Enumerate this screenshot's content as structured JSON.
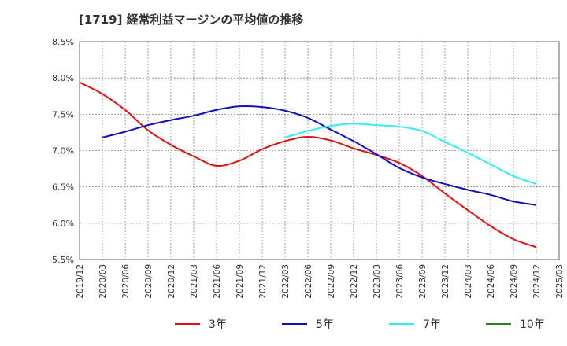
{
  "chart_data": {
    "type": "line",
    "title": "[1719]  経常利益マージンの平均値の推移",
    "xlabel": "",
    "ylabel": "",
    "ylim": [
      5.5,
      8.5
    ],
    "yticks": [
      5.5,
      6.0,
      6.5,
      7.0,
      7.5,
      8.0,
      8.5
    ],
    "ytick_labels": [
      "5.5%",
      "6.0%",
      "6.5%",
      "7.0%",
      "7.5%",
      "8.0%",
      "8.5%"
    ],
    "x_range": [
      "2019/12",
      "2025/03"
    ],
    "xtick_labels": [
      "2019/12",
      "2020/03",
      "2020/06",
      "2020/09",
      "2020/12",
      "2021/03",
      "2021/06",
      "2021/09",
      "2021/12",
      "2022/03",
      "2022/06",
      "2022/09",
      "2022/12",
      "2023/03",
      "2023/06",
      "2023/09",
      "2023/12",
      "2024/03",
      "2024/06",
      "2024/09",
      "2024/12",
      "2025/03"
    ],
    "grid": true,
    "legend_position": "bottom",
    "series": [
      {
        "name": "3年",
        "color": "#dd1111",
        "x": [
          "2019/12",
          "2020/03",
          "2020/06",
          "2020/09",
          "2020/12",
          "2021/03",
          "2021/06",
          "2021/09",
          "2021/12",
          "2022/03",
          "2022/06",
          "2022/09",
          "2022/12",
          "2023/03",
          "2023/06",
          "2023/09",
          "2023/12",
          "2024/03",
          "2024/06",
          "2024/09",
          "2024/12"
        ],
        "values": [
          7.94,
          7.78,
          7.56,
          7.28,
          7.08,
          6.92,
          6.79,
          6.86,
          7.02,
          7.13,
          7.19,
          7.14,
          7.03,
          6.94,
          6.83,
          6.65,
          6.41,
          6.18,
          5.96,
          5.78,
          5.67
        ]
      },
      {
        "name": "5年",
        "color": "#1111bb",
        "x": [
          "2020/03",
          "2020/06",
          "2020/09",
          "2020/12",
          "2021/03",
          "2021/06",
          "2021/09",
          "2021/12",
          "2022/03",
          "2022/06",
          "2022/09",
          "2022/12",
          "2023/03",
          "2023/06",
          "2023/09",
          "2023/12",
          "2024/03",
          "2024/06",
          "2024/09",
          "2024/12"
        ],
        "values": [
          7.18,
          7.26,
          7.35,
          7.42,
          7.48,
          7.56,
          7.61,
          7.6,
          7.55,
          7.45,
          7.29,
          7.13,
          6.95,
          6.76,
          6.63,
          6.54,
          6.46,
          6.39,
          6.3,
          6.25
        ]
      },
      {
        "name": "7年",
        "color": "#33eeee",
        "x": [
          "2022/03",
          "2022/06",
          "2022/09",
          "2022/12",
          "2023/03",
          "2023/06",
          "2023/09",
          "2023/12",
          "2024/03",
          "2024/06",
          "2024/09",
          "2024/12"
        ],
        "values": [
          7.18,
          7.27,
          7.34,
          7.37,
          7.35,
          7.33,
          7.27,
          7.12,
          6.97,
          6.81,
          6.65,
          6.54
        ]
      },
      {
        "name": "10年",
        "color": "#228822",
        "x": [],
        "values": []
      }
    ]
  },
  "colors": {
    "frame": "#666666",
    "grid": "#888888",
    "text": "#333333"
  }
}
